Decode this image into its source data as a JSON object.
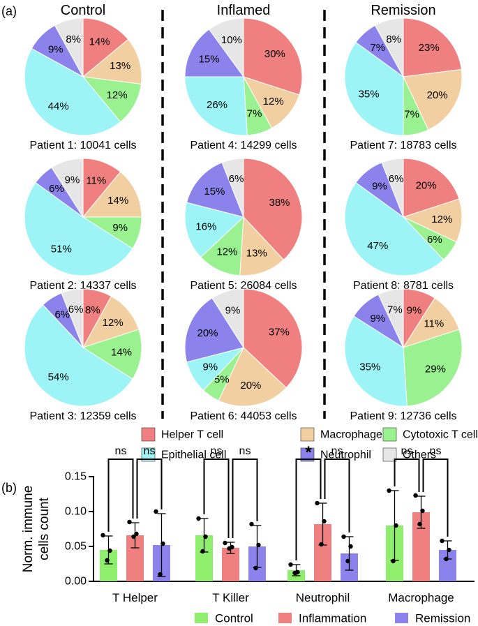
{
  "panel_a_label": "(a)",
  "panel_b_label": "(b)",
  "group_titles": [
    "Control",
    "Inflamed",
    "Remission"
  ],
  "colors": {
    "Helper T cell": "#F08080",
    "Macrophage": "#F2CFA0",
    "Cytotoxic T cell": "#99F28F",
    "Epithelial cell": "#9CF4F6",
    "Neutrophil": "#8B82EC",
    "Others": "#E6E6E6",
    "Control": "#90EE6E",
    "Inflammation": "#F08080",
    "Remission": "#8B82EC"
  },
  "chart_data": [
    {
      "type": "pie",
      "title": "Cell composition per patient",
      "categories": [
        "Helper T cell",
        "Macrophage",
        "Cytotoxic T cell",
        "Epithelial cell",
        "Neutrophil",
        "Others"
      ],
      "legend": [
        "Helper T cell",
        "Macrophage",
        "Cytotoxic T cell",
        "Epithelial cell",
        "Neutrophil",
        "Others"
      ],
      "pies": [
        {
          "group": "Control",
          "caption": "Patient 1: 10041 cells",
          "values": [
            14,
            13,
            12,
            44,
            9,
            8
          ],
          "labels": [
            "14%",
            "13%",
            "12%",
            "44%",
            "9%",
            "8%"
          ]
        },
        {
          "group": "Control",
          "caption": "Patient 2: 14337 cells",
          "values": [
            11,
            14,
            9,
            51,
            6,
            9
          ],
          "labels": [
            "11%",
            "14%",
            "9%",
            "51%",
            "6%",
            "9%"
          ]
        },
        {
          "group": "Control",
          "caption": "Patient 3: 12359 cells",
          "values": [
            8,
            12,
            14,
            54,
            6,
            6
          ],
          "labels": [
            "8%",
            "12%",
            "14%",
            "54%",
            "6%",
            "6%"
          ]
        },
        {
          "group": "Inflamed",
          "caption": "Patient 4: 14299 cells",
          "values": [
            30,
            12,
            7,
            26,
            15,
            10
          ],
          "labels": [
            "30%",
            "12%",
            "7%",
            "26%",
            "15%",
            "10%"
          ]
        },
        {
          "group": "Inflamed",
          "caption": "Patient 5: 26084 cells",
          "values": [
            38,
            13,
            12,
            16,
            15,
            6
          ],
          "labels": [
            "38%",
            "13%",
            "12%",
            "16%",
            "15%",
            "6%"
          ]
        },
        {
          "group": "Inflamed",
          "caption": "Patient 6: 44053 cells",
          "values": [
            37,
            20,
            5,
            9,
            20,
            9
          ],
          "labels": [
            "37%",
            "20%",
            "5%",
            "9%",
            "20%",
            "9%"
          ]
        },
        {
          "group": "Remission",
          "caption": "Patient 7: 18783 cells",
          "values": [
            23,
            20,
            7,
            35,
            7,
            8
          ],
          "labels": [
            "23%",
            "20%",
            "7%",
            "35%",
            "7%",
            "8%"
          ]
        },
        {
          "group": "Remission",
          "caption": "Patient 8: 8781 cells",
          "values": [
            20,
            12,
            6,
            47,
            9,
            6
          ],
          "labels": [
            "20%",
            "12%",
            "6%",
            "47%",
            "9%",
            "6%"
          ]
        },
        {
          "group": "Remission",
          "caption": "Patient 9: 12736 cells",
          "values": [
            9,
            11,
            29,
            35,
            9,
            7
          ],
          "labels": [
            "9%",
            "11%",
            "29%",
            "35%",
            "9%",
            "7%"
          ]
        }
      ]
    },
    {
      "type": "bar",
      "title": "",
      "xlabel": "",
      "ylabel": "Norm. immune cells count",
      "ylabel_lines": [
        "Norm. immune",
        "cells count"
      ],
      "ylim": [
        0,
        0.15
      ],
      "yticks": [
        0.0,
        0.05,
        0.1,
        0.15
      ],
      "ytick_labels": [
        "0.00",
        "0.05",
        "0.10",
        "0.15"
      ],
      "categories": [
        "T Helper",
        "T Killer",
        "Neutrophil",
        "Macrophage"
      ],
      "legend": [
        "Control",
        "Inflammation",
        "Remission"
      ],
      "series": [
        {
          "name": "Control",
          "values": [
            0.045,
            0.066,
            0.016,
            0.08
          ],
          "err": [
            0.02,
            0.024,
            0.008,
            0.05
          ],
          "points": [
            [
              0.066,
              0.044,
              0.03
            ],
            [
              0.09,
              0.064,
              0.043
            ],
            [
              0.024,
              0.013,
              0.012
            ],
            [
              0.13,
              0.08,
              0.029
            ]
          ]
        },
        {
          "name": "Inflammation",
          "values": [
            0.066,
            0.048,
            0.082,
            0.099
          ],
          "err": [
            0.018,
            0.008,
            0.03,
            0.023
          ],
          "points": [
            [
              0.085,
              0.068,
              0.064
            ],
            [
              0.055,
              0.049,
              0.047
            ],
            [
              0.112,
              0.086,
              0.053
            ],
            [
              0.123,
              0.101,
              0.082
            ]
          ]
        },
        {
          "name": "Remission",
          "values": [
            0.052,
            0.05,
            0.04,
            0.045
          ],
          "err": [
            0.045,
            0.03,
            0.024,
            0.013
          ],
          "points": [
            [
              0.1,
              0.054,
              0.01
            ],
            [
              0.082,
              0.052,
              0.019
            ],
            [
              0.064,
              0.05,
              0.029
            ],
            [
              0.058,
              0.045,
              0.032
            ]
          ]
        }
      ],
      "significance": [
        {
          "category": "T Helper",
          "labels": [
            "ns",
            "ns"
          ]
        },
        {
          "category": "T Killer",
          "labels": [
            "ns",
            "ns"
          ]
        },
        {
          "category": "Neutrophil",
          "labels": [
            "*",
            "ns"
          ]
        },
        {
          "category": "Macrophage",
          "labels": [
            "ns",
            "ns"
          ]
        }
      ]
    }
  ]
}
